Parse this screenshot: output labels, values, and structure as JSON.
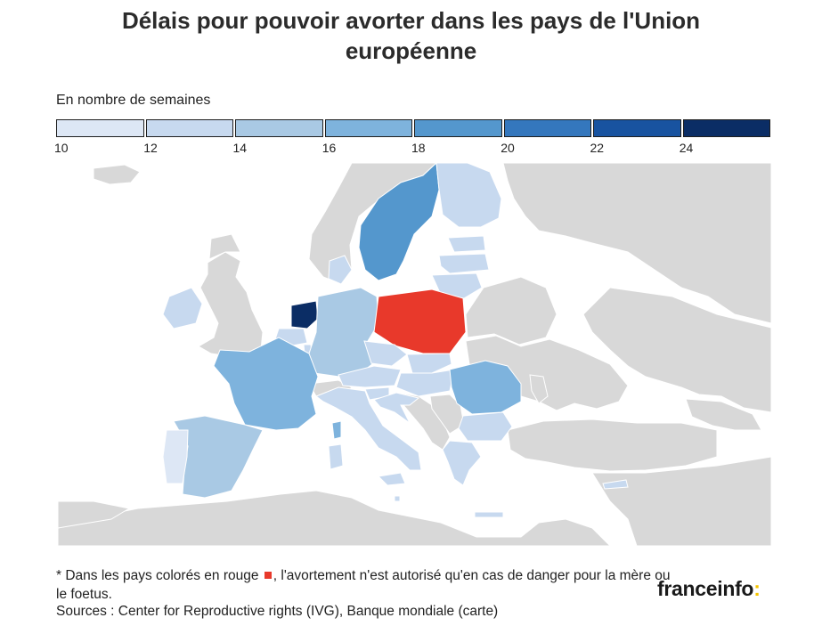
{
  "title": {
    "line1": "Délais pour pouvoir avorter dans les pays de l'Union",
    "line2": "européenne"
  },
  "legend": {
    "label": "En nombre de semaines",
    "ticks": [
      "10",
      "12",
      "14",
      "16",
      "18",
      "20",
      "22",
      "24"
    ],
    "colors": [
      "#dde7f5",
      "#c7d9ef",
      "#a9c9e4",
      "#7eb3dd",
      "#5497cd",
      "#3477bd",
      "#1853a0",
      "#0b2d65"
    ]
  },
  "map_colors": {
    "non_eu": "#d8d8d8",
    "sea": "#ffffff",
    "restricted_red": "#e8392b"
  },
  "footnote": {
    "prefix": "* Dans les pays colorés en rouge",
    "suffix": ", l'avortement n'est autorisé qu'en cas de danger pour la mère ou le foetus."
  },
  "sources": "Sources : Center for Reproductive rights (IVG), Banque mondiale (carte)",
  "brand": {
    "name": "franceinfo",
    "colon": ":"
  }
}
